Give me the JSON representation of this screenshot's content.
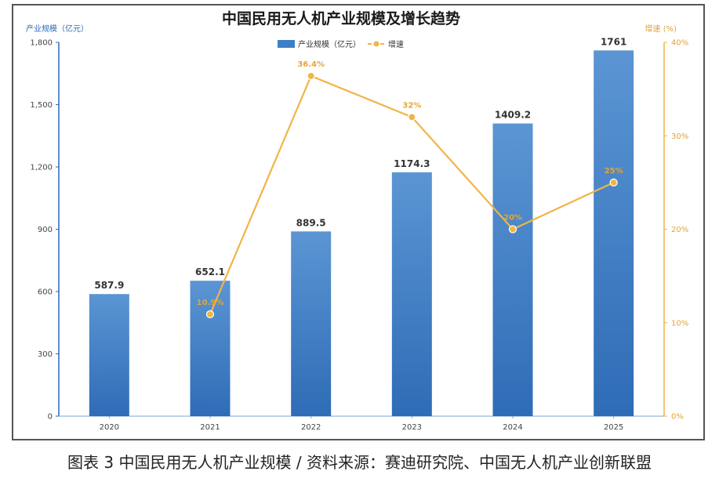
{
  "caption": "图表 3 中国民用无人机产业规模  / 资料来源：赛迪研究院、中国无人机产业创新联盟",
  "colors": {
    "bar": "#3f7fc6",
    "line": "#f0b545",
    "axis_left": "#2b6cb8",
    "axis_right": "#f0b545",
    "grid_tick": "#444444"
  },
  "chart_data": {
    "type": "bar",
    "title": "中国民用无人机产业规模及增长趋势",
    "categories": [
      "2020",
      "2021",
      "2022",
      "2023",
      "2024",
      "2025"
    ],
    "series": [
      {
        "name": "产业规模（亿元）",
        "type": "bar",
        "axis": "left",
        "values": [
          587.9,
          652.1,
          889.5,
          1174.3,
          1409.2,
          1761
        ],
        "labels": [
          "587.9",
          "652.1",
          "889.5",
          "1174.3",
          "1409.2",
          "1761"
        ]
      },
      {
        "name": "增速",
        "type": "line",
        "axis": "right",
        "values": [
          null,
          10.9,
          36.4,
          32,
          20,
          25
        ],
        "labels": [
          "",
          "10.9%",
          "36.4%",
          "32%",
          "20%",
          "25%"
        ]
      }
    ],
    "y_left": {
      "label": "产业规模（亿元）",
      "range": [
        0,
        1800
      ],
      "ticks": [
        0,
        300,
        600,
        900,
        1200,
        1500,
        1800
      ],
      "tick_labels": [
        "0",
        "300",
        "600",
        "900",
        "1,200",
        "1,500",
        "1,800"
      ]
    },
    "y_right": {
      "label": "增速 (%)",
      "range": [
        0,
        40
      ],
      "ticks": [
        0,
        10,
        20,
        30,
        40
      ],
      "tick_labels": [
        "0%",
        "10%",
        "20%",
        "30%",
        "40%"
      ]
    },
    "legend_position": "top-center",
    "grid": false
  }
}
